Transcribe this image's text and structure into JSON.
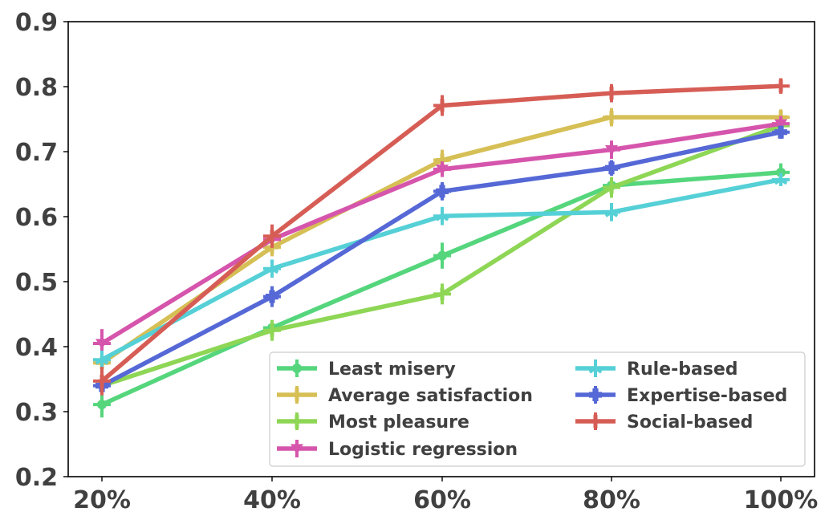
{
  "chart_data": {
    "type": "line",
    "title": "",
    "xlabel": "",
    "ylabel": "",
    "categories": [
      "20%",
      "40%",
      "60%",
      "80%",
      "100%"
    ],
    "ylim": [
      0.2,
      0.9
    ],
    "yticks": [
      0.2,
      0.3,
      0.4,
      0.5,
      0.6,
      0.7,
      0.8,
      0.9
    ],
    "ytick_labels": [
      "0.2",
      "0.3",
      "0.4",
      "0.5",
      "0.6",
      "0.7",
      "0.8",
      "0.9"
    ],
    "grid": false,
    "legend_position": "bottom-right",
    "series": [
      {
        "name": "Least misery",
        "color": "#55d67d",
        "marker": "circle",
        "values": [
          0.311,
          0.429,
          0.54,
          0.648,
          0.668
        ],
        "errors": [
          0.02,
          0.012,
          0.02,
          0.012,
          0.014
        ]
      },
      {
        "name": "Average satisfaction",
        "color": "#d6bf55",
        "marker": "plus",
        "values": [
          0.375,
          0.553,
          0.687,
          0.753,
          0.753
        ],
        "errors": [
          0.014,
          0.014,
          0.016,
          0.014,
          0.012
        ]
      },
      {
        "name": "Most pleasure",
        "color": "#8ed655",
        "marker": "vline",
        "values": [
          0.34,
          0.425,
          0.481,
          0.645,
          0.74
        ],
        "errors": [
          0.012,
          0.016,
          0.016,
          0.016,
          0.012
        ]
      },
      {
        "name": "Logistic regression",
        "color": "#d655ac",
        "marker": "triangle-down",
        "values": [
          0.405,
          0.565,
          0.673,
          0.703,
          0.743
        ],
        "errors": [
          0.022,
          0.012,
          0.012,
          0.014,
          0.012
        ]
      },
      {
        "name": "Rule-based",
        "color": "#55d0d6",
        "marker": "tri-up",
        "values": [
          0.38,
          0.52,
          0.601,
          0.607,
          0.657
        ],
        "errors": [
          0.014,
          0.014,
          0.014,
          0.014,
          0.01
        ]
      },
      {
        "name": "Expertise-based",
        "color": "#5568d6",
        "marker": "plus-filled",
        "values": [
          0.34,
          0.477,
          0.639,
          0.675,
          0.73
        ],
        "errors": [
          0.01,
          0.016,
          0.014,
          0.012,
          0.01
        ]
      },
      {
        "name": "Social-based",
        "color": "#d65d55",
        "marker": "vline",
        "values": [
          0.347,
          0.57,
          0.771,
          0.79,
          0.801
        ],
        "errors": [
          0.022,
          0.018,
          0.016,
          0.014,
          0.012
        ]
      }
    ]
  }
}
